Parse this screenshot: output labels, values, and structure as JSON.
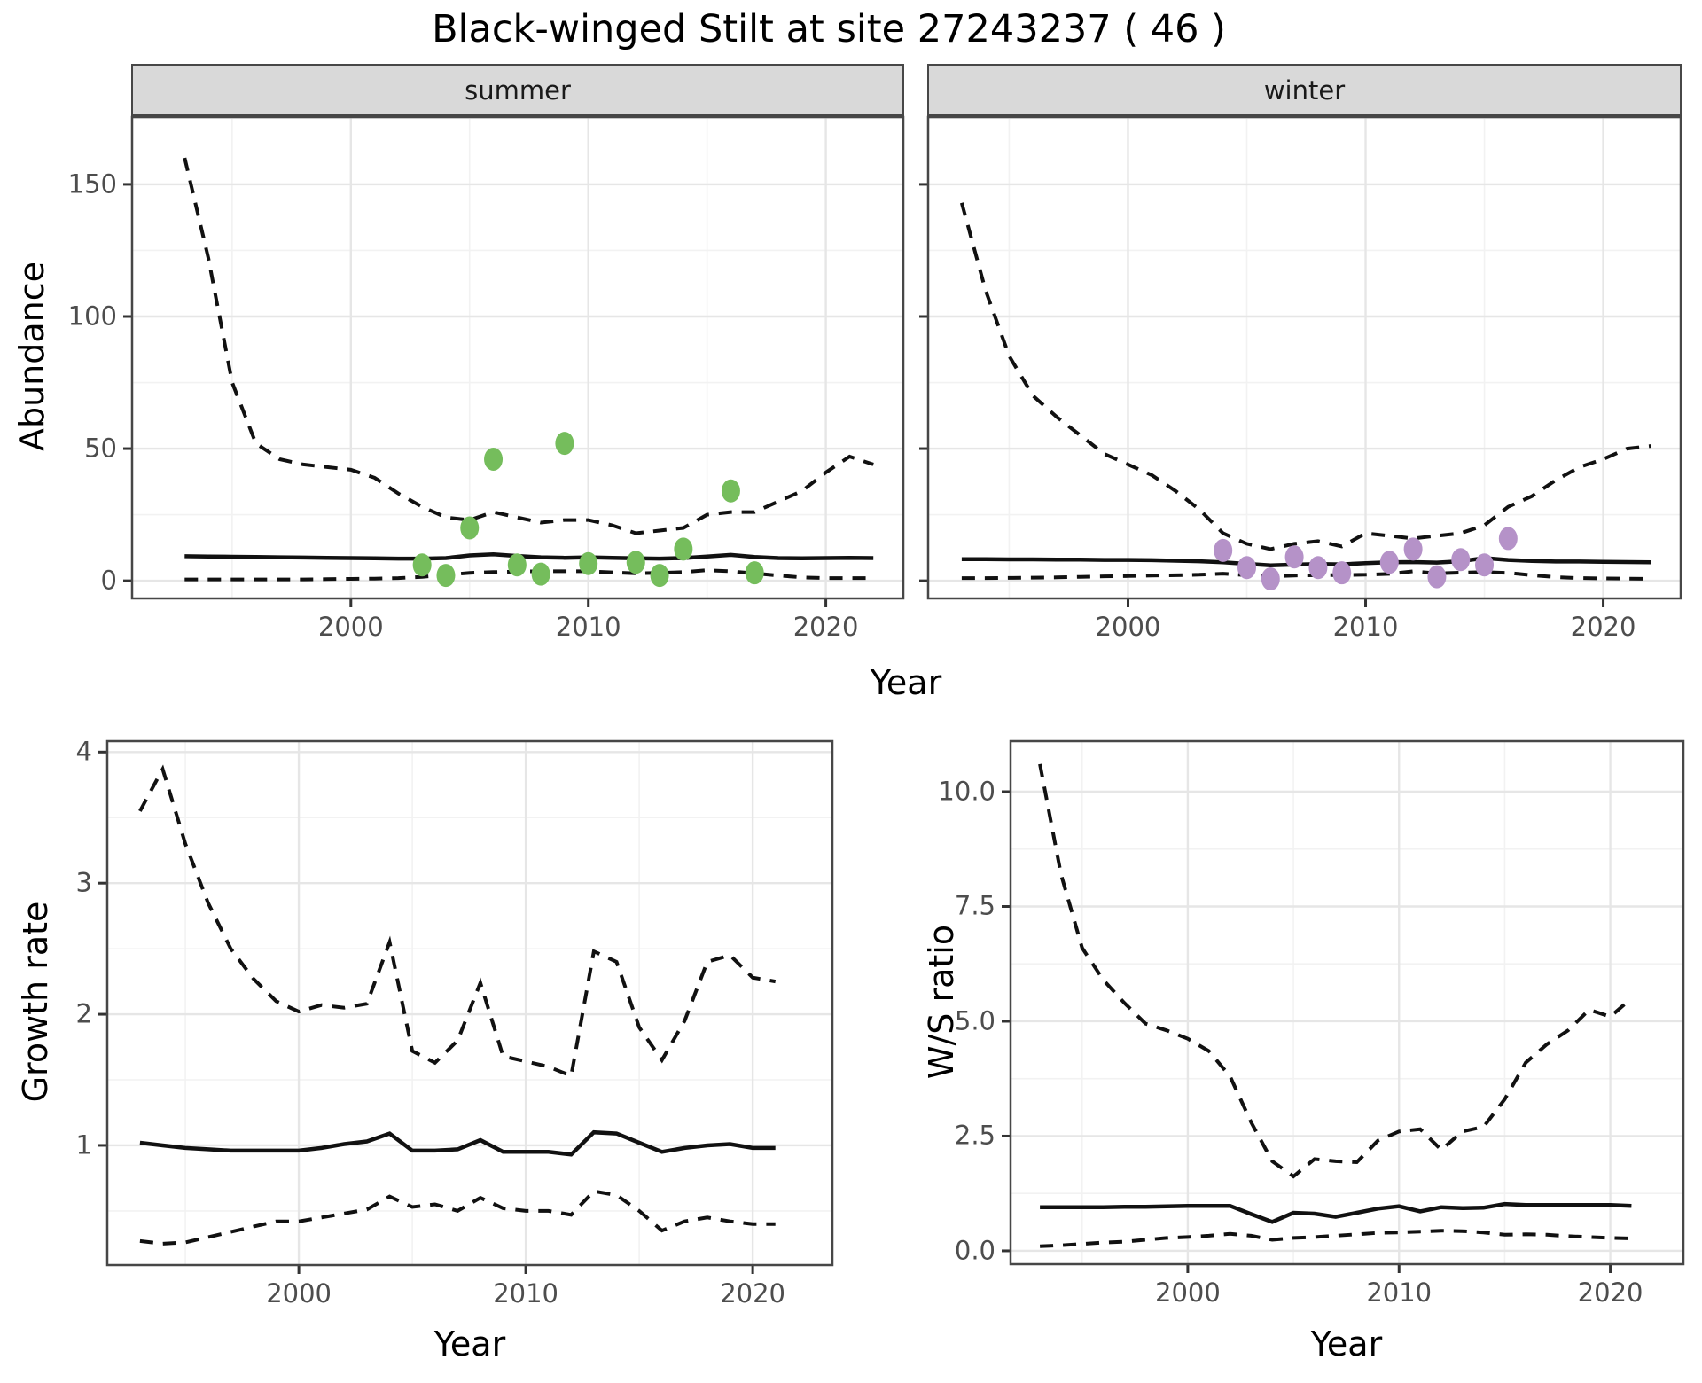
{
  "title": "Black-winged Stilt at site 27243237 ( 46 )",
  "axis_titles": {
    "top_y": "Abundance",
    "top_x": "Year",
    "growth_y": "Growth rate",
    "growth_x": "Year",
    "ws_y": "W/S ratio",
    "ws_x": "Year"
  },
  "colors": {
    "summer_points": "#75bd5c",
    "winter_points": "#b592c8",
    "fit_line": "#111111",
    "strip_bg": "#d9d9d9",
    "grid_major": "#e6e6e6",
    "grid_minor": "#f2f2f2",
    "panel_border": "#474747",
    "tick_text": "#4d4d4d"
  },
  "chart_data": [
    {
      "type": "line",
      "name": "abundance-summer",
      "strip_label": "summer",
      "xlabel": "Year",
      "ylabel": "Abundance",
      "xlim": [
        1990.75,
        2023.3
      ],
      "ylim": [
        -7,
        175.8
      ],
      "xticks": {
        "values": [
          2000,
          2010,
          2020
        ],
        "labels": [
          "2000",
          "2010",
          "2020"
        ]
      },
      "yticks": {
        "values": [
          0,
          50,
          100,
          150
        ],
        "labels": [
          "0",
          "50",
          "100",
          "150"
        ]
      },
      "show_y_labels": true,
      "x": [
        1993,
        1994,
        1995,
        1996,
        1997,
        1998,
        1999,
        2000,
        2001,
        2002,
        2003,
        2004,
        2005,
        2006,
        2007,
        2008,
        2009,
        2010,
        2011,
        2012,
        2013,
        2014,
        2015,
        2016,
        2017,
        2018,
        2019,
        2020,
        2021,
        2022
      ],
      "series": [
        {
          "name": "upper_ci",
          "style": "dashed",
          "values": [
            160,
            122,
            75,
            52,
            46,
            44,
            43,
            42,
            39,
            33,
            28,
            24,
            23,
            26,
            24,
            22,
            23,
            23,
            21,
            18,
            19,
            20,
            25,
            26,
            26,
            30,
            34,
            41,
            47,
            44
          ]
        },
        {
          "name": "median",
          "style": "solid",
          "values": [
            9.3,
            9.2,
            9.1,
            9.0,
            8.9,
            8.8,
            8.7,
            8.6,
            8.5,
            8.4,
            8.4,
            8.6,
            9.6,
            10.0,
            9.4,
            8.9,
            8.7,
            8.9,
            8.7,
            8.5,
            8.4,
            8.6,
            9.2,
            9.8,
            9.0,
            8.6,
            8.5,
            8.6,
            8.7,
            8.6
          ]
        },
        {
          "name": "lower_ci",
          "style": "dashed",
          "values": [
            0.5,
            0.5,
            0.5,
            0.5,
            0.5,
            0.5,
            0.6,
            0.7,
            0.8,
            1.0,
            1.5,
            2.2,
            3.0,
            3.3,
            3.5,
            3.6,
            3.6,
            3.6,
            3.2,
            2.8,
            3.0,
            3.3,
            4.0,
            3.6,
            2.8,
            2.0,
            1.3,
            1.0,
            1.0,
            1.0
          ]
        }
      ],
      "points": {
        "name": "observed-counts",
        "color": "#75bd5c",
        "data": [
          [
            2003,
            6
          ],
          [
            2004,
            2
          ],
          [
            2005,
            20
          ],
          [
            2006,
            46
          ],
          [
            2007,
            6
          ],
          [
            2008,
            2.5
          ],
          [
            2009,
            52
          ],
          [
            2010,
            6.5
          ],
          [
            2012,
            7
          ],
          [
            2013,
            2
          ],
          [
            2014,
            12
          ],
          [
            2016,
            34
          ],
          [
            2017,
            3
          ]
        ]
      }
    },
    {
      "type": "line",
      "name": "abundance-winter",
      "strip_label": "winter",
      "xlabel": "Year",
      "ylabel": "Abundance",
      "xlim": [
        1991.55,
        2023.3
      ],
      "ylim": [
        -7,
        175.8
      ],
      "xticks": {
        "values": [
          2000,
          2010,
          2020
        ],
        "labels": [
          "2000",
          "2010",
          "2020"
        ]
      },
      "yticks": {
        "values": [
          0,
          50,
          100,
          150
        ],
        "labels": [
          "0",
          "50",
          "100",
          "150"
        ]
      },
      "show_y_labels": false,
      "x": [
        1993,
        1994,
        1995,
        1996,
        1997,
        1998,
        1999,
        2000,
        2001,
        2002,
        2003,
        2004,
        2005,
        2006,
        2007,
        2008,
        2009,
        2010,
        2011,
        2012,
        2013,
        2014,
        2015,
        2016,
        2017,
        2018,
        2019,
        2020,
        2021,
        2022
      ],
      "series": [
        {
          "name": "upper_ci",
          "style": "dashed",
          "values": [
            143,
            110,
            85,
            70,
            62,
            55,
            48,
            44,
            40,
            34,
            27,
            18,
            14,
            12,
            14,
            15,
            13,
            18,
            17,
            16,
            17,
            18,
            21,
            28,
            32,
            38,
            43,
            46,
            50,
            51
          ]
        },
        {
          "name": "median",
          "style": "solid",
          "values": [
            8.2,
            8.2,
            8.1,
            8.1,
            8.0,
            8.0,
            7.9,
            7.9,
            7.8,
            7.6,
            7.4,
            7.0,
            6.4,
            5.8,
            6.1,
            6.3,
            6.2,
            6.7,
            7.0,
            7.1,
            6.9,
            7.4,
            8.6,
            7.9,
            7.5,
            7.3,
            7.3,
            7.2,
            7.1,
            7.0
          ]
        },
        {
          "name": "lower_ci",
          "style": "dashed",
          "values": [
            1.0,
            1.0,
            1.1,
            1.2,
            1.3,
            1.5,
            1.7,
            1.8,
            2.0,
            2.1,
            2.3,
            2.7,
            2.1,
            1.7,
            2.0,
            2.1,
            2.2,
            2.3,
            2.6,
            3.6,
            2.8,
            3.1,
            3.3,
            3.0,
            2.1,
            1.4,
            1.0,
            0.9,
            0.8,
            0.7
          ]
        }
      ],
      "points": {
        "name": "observed-counts",
        "color": "#b592c8",
        "data": [
          [
            2004,
            11.5
          ],
          [
            2005,
            5
          ],
          [
            2006,
            0.7
          ],
          [
            2007,
            9
          ],
          [
            2008,
            5
          ],
          [
            2009,
            3
          ],
          [
            2011,
            7
          ],
          [
            2012,
            12
          ],
          [
            2013,
            1.5
          ],
          [
            2014,
            8
          ],
          [
            2015,
            6
          ],
          [
            2016,
            16
          ]
        ]
      }
    },
    {
      "type": "line",
      "name": "growth-rate",
      "strip_label": "",
      "xlabel": "Year",
      "ylabel": "Growth rate",
      "xlim": [
        1991.52,
        2023.55
      ],
      "ylim": [
        0.08,
        4.09
      ],
      "xticks": {
        "values": [
          2000,
          2010,
          2020
        ],
        "labels": [
          "2000",
          "2010",
          "2020"
        ]
      },
      "yticks": {
        "values": [
          1,
          2,
          3,
          4
        ],
        "labels": [
          "1",
          "2",
          "3",
          "4"
        ]
      },
      "show_y_labels": true,
      "x": [
        1993,
        1994,
        1995,
        1996,
        1997,
        1998,
        1999,
        2000,
        2001,
        2002,
        2003,
        2004,
        2005,
        2006,
        2007,
        2008,
        2009,
        2010,
        2011,
        2012,
        2013,
        2014,
        2015,
        2016,
        2017,
        2018,
        2019,
        2020,
        2021
      ],
      "series": [
        {
          "name": "upper_ci",
          "style": "dashed",
          "values": [
            3.55,
            3.87,
            3.3,
            2.85,
            2.5,
            2.27,
            2.1,
            2.02,
            2.07,
            2.05,
            2.08,
            2.55,
            1.72,
            1.63,
            1.8,
            2.24,
            1.68,
            1.64,
            1.6,
            1.53,
            2.48,
            2.4,
            1.9,
            1.65,
            1.95,
            2.4,
            2.45,
            2.28,
            2.25
          ]
        },
        {
          "name": "median",
          "style": "solid",
          "values": [
            1.02,
            1.0,
            0.98,
            0.97,
            0.96,
            0.96,
            0.96,
            0.96,
            0.98,
            1.01,
            1.03,
            1.09,
            0.96,
            0.96,
            0.97,
            1.04,
            0.95,
            0.95,
            0.95,
            0.93,
            1.1,
            1.09,
            1.02,
            0.95,
            0.98,
            1.0,
            1.01,
            0.98,
            0.98
          ]
        },
        {
          "name": "lower_ci",
          "style": "dashed",
          "values": [
            0.27,
            0.25,
            0.26,
            0.3,
            0.34,
            0.38,
            0.42,
            0.42,
            0.45,
            0.48,
            0.51,
            0.61,
            0.53,
            0.55,
            0.5,
            0.6,
            0.52,
            0.5,
            0.5,
            0.47,
            0.65,
            0.62,
            0.5,
            0.35,
            0.42,
            0.45,
            0.42,
            0.4,
            0.4
          ]
        }
      ],
      "points": null
    },
    {
      "type": "line",
      "name": "ws-ratio",
      "strip_label": "",
      "xlabel": "Year",
      "ylabel": "W/S ratio",
      "xlim": [
        1991.57,
        2023.5
      ],
      "ylim": [
        -0.31,
        11.12
      ],
      "xticks": {
        "values": [
          2000,
          2010,
          2020
        ],
        "labels": [
          "2000",
          "2010",
          "2020"
        ]
      },
      "yticks": {
        "values": [
          0,
          2.5,
          5,
          7.5,
          10
        ],
        "labels": [
          "0.0",
          "2.5",
          "5.0",
          "7.5",
          "10.0"
        ]
      },
      "show_y_labels": true,
      "x": [
        1993,
        1994,
        1995,
        1996,
        1997,
        1998,
        1999,
        2000,
        2001,
        2002,
        2003,
        2004,
        2005,
        2006,
        2007,
        2008,
        2009,
        2010,
        2011,
        2012,
        2013,
        2014,
        2015,
        2016,
        2017,
        2018,
        2019,
        2020,
        2021
      ],
      "series": [
        {
          "name": "upper_ci",
          "style": "dashed",
          "values": [
            10.6,
            8.2,
            6.6,
            5.9,
            5.4,
            4.95,
            4.8,
            4.62,
            4.35,
            3.8,
            2.8,
            1.95,
            1.62,
            2.0,
            1.95,
            1.93,
            2.4,
            2.6,
            2.65,
            2.2,
            2.6,
            2.7,
            3.3,
            4.1,
            4.5,
            4.8,
            5.25,
            5.1,
            5.5
          ]
        },
        {
          "name": "median",
          "style": "solid",
          "values": [
            0.95,
            0.95,
            0.95,
            0.95,
            0.96,
            0.96,
            0.97,
            0.98,
            0.98,
            0.98,
            0.8,
            0.63,
            0.83,
            0.81,
            0.74,
            0.83,
            0.92,
            0.97,
            0.86,
            0.95,
            0.93,
            0.94,
            1.02,
            1.0,
            1.0,
            1.0,
            1.0,
            1.0,
            0.98
          ]
        },
        {
          "name": "lower_ci",
          "style": "dashed",
          "values": [
            0.1,
            0.12,
            0.15,
            0.18,
            0.2,
            0.24,
            0.28,
            0.3,
            0.33,
            0.37,
            0.33,
            0.24,
            0.28,
            0.3,
            0.33,
            0.36,
            0.39,
            0.4,
            0.42,
            0.44,
            0.43,
            0.4,
            0.35,
            0.36,
            0.35,
            0.32,
            0.3,
            0.28,
            0.27
          ]
        }
      ],
      "points": null
    }
  ]
}
